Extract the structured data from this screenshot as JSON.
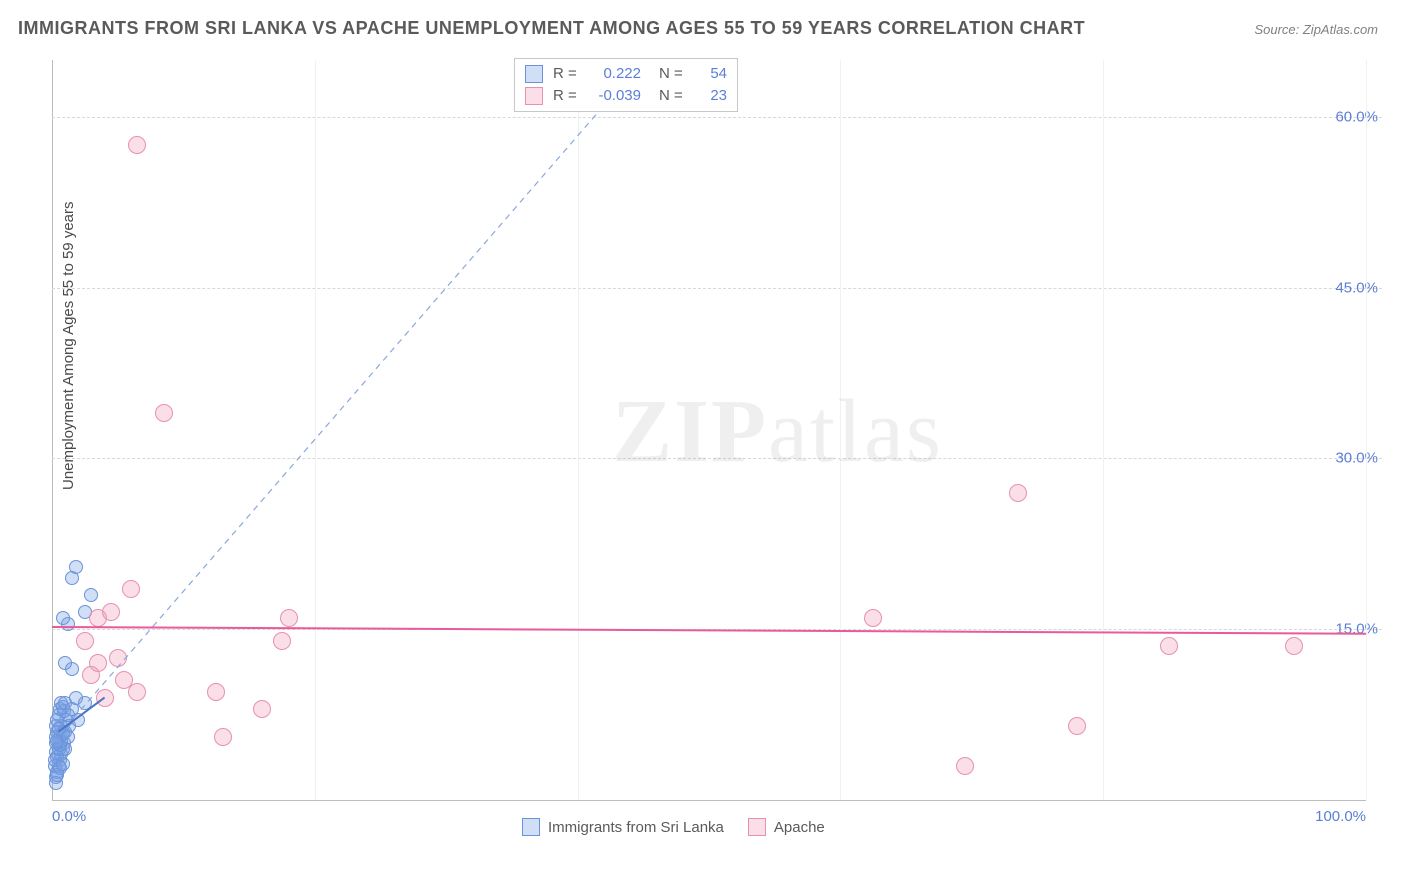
{
  "title": "IMMIGRANTS FROM SRI LANKA VS APACHE UNEMPLOYMENT AMONG AGES 55 TO 59 YEARS CORRELATION CHART",
  "source": "Source: ZipAtlas.com",
  "ylabel": "Unemployment Among Ages 55 to 59 years",
  "watermark_a": "ZIP",
  "watermark_b": "atlas",
  "chart": {
    "type": "scatter",
    "xlim": [
      0,
      100
    ],
    "ylim": [
      0,
      65
    ],
    "xticks": [
      {
        "v": 0,
        "label": "0.0%"
      },
      {
        "v": 100,
        "label": "100.0%"
      }
    ],
    "xgrid": [
      20,
      40,
      60,
      80,
      100
    ],
    "yticks": [
      {
        "v": 15,
        "label": "15.0%"
      },
      {
        "v": 30,
        "label": "30.0%"
      },
      {
        "v": 45,
        "label": "45.0%"
      },
      {
        "v": 60,
        "label": "60.0%"
      }
    ],
    "grid_color": "#d8d8d8",
    "axis_color": "#bdbdbd",
    "background_color": "#ffffff",
    "tick_color": "#5b7fd6",
    "tick_fontsize": 15,
    "title_fontsize": 18,
    "title_color": "#5a5a5a",
    "point_radius_blue": 7,
    "point_radius_pink": 9,
    "series": [
      {
        "key": "sri_lanka",
        "label": "Immigrants from Sri Lanka",
        "fill": "rgba(120,160,230,0.35)",
        "stroke": "#6a93d8",
        "r": 0.222,
        "n": 54,
        "radius": 7,
        "trend": {
          "x1": 0,
          "y1": 5,
          "x2": 45,
          "y2": 65,
          "color": "#8aa8db",
          "dash": "6 5",
          "width": 1.2
        },
        "arrow": {
          "x1": 0.5,
          "y1": 6,
          "x2": 4,
          "y2": 9,
          "color": "#4a74c4",
          "width": 2
        },
        "points": [
          [
            0.3,
            2.0
          ],
          [
            0.4,
            2.5
          ],
          [
            0.5,
            3.0
          ],
          [
            0.6,
            3.5
          ],
          [
            0.7,
            4.0
          ],
          [
            0.8,
            4.5
          ],
          [
            0.5,
            5.0
          ],
          [
            0.6,
            5.5
          ],
          [
            0.4,
            6.0
          ],
          [
            0.7,
            6.5
          ],
          [
            0.8,
            6.0
          ],
          [
            0.9,
            5.0
          ],
          [
            1.0,
            4.5
          ],
          [
            1.1,
            7.0
          ],
          [
            1.2,
            7.5
          ],
          [
            1.3,
            6.5
          ],
          [
            0.5,
            7.5
          ],
          [
            0.6,
            8.0
          ],
          [
            0.7,
            8.5
          ],
          [
            0.8,
            8.2
          ],
          [
            0.9,
            7.8
          ],
          [
            1.0,
            8.5
          ],
          [
            1.5,
            8.0
          ],
          [
            1.8,
            9.0
          ],
          [
            0.3,
            4.2
          ],
          [
            0.4,
            3.8
          ],
          [
            0.5,
            4.5
          ],
          [
            0.6,
            4.8
          ],
          [
            0.7,
            5.2
          ],
          [
            0.8,
            5.8
          ],
          [
            0.3,
            6.5
          ],
          [
            0.4,
            7.0
          ],
          [
            0.2,
            3.0
          ],
          [
            0.2,
            3.5
          ],
          [
            0.3,
            5.0
          ],
          [
            0.3,
            5.5
          ],
          [
            0.4,
            5.2
          ],
          [
            0.5,
            6.2
          ],
          [
            1.0,
            6.0
          ],
          [
            1.2,
            5.5
          ],
          [
            2.5,
            8.5
          ],
          [
            2.0,
            7.0
          ],
          [
            1.5,
            11.5
          ],
          [
            1.0,
            12.0
          ],
          [
            1.2,
            15.5
          ],
          [
            0.8,
            16.0
          ],
          [
            2.5,
            16.5
          ],
          [
            3.0,
            18.0
          ],
          [
            1.5,
            19.5
          ],
          [
            1.8,
            20.5
          ],
          [
            0.3,
            1.5
          ],
          [
            0.4,
            2.2
          ],
          [
            0.6,
            2.8
          ],
          [
            0.8,
            3.2
          ]
        ]
      },
      {
        "key": "apache",
        "label": "Apache",
        "fill": "rgba(240,160,190,0.35)",
        "stroke": "#e890b0",
        "r": -0.039,
        "n": 23,
        "radius": 9,
        "trend": {
          "x1": 0,
          "y1": 15.2,
          "x2": 100,
          "y2": 14.6,
          "color": "#e85a9a",
          "dash": "",
          "width": 2
        },
        "points": [
          [
            6.5,
            57.5
          ],
          [
            8.5,
            34.0
          ],
          [
            3.5,
            16.0
          ],
          [
            4.5,
            16.5
          ],
          [
            6.0,
            18.5
          ],
          [
            3.5,
            12.0
          ],
          [
            5.0,
            12.5
          ],
          [
            5.5,
            10.5
          ],
          [
            4.0,
            9.0
          ],
          [
            6.5,
            9.5
          ],
          [
            12.5,
            9.5
          ],
          [
            13.0,
            5.5
          ],
          [
            16.0,
            8.0
          ],
          [
            18.0,
            16.0
          ],
          [
            62.5,
            16.0
          ],
          [
            78.0,
            6.5
          ],
          [
            73.5,
            27.0
          ],
          [
            69.5,
            3.0
          ],
          [
            85.0,
            13.5
          ],
          [
            94.5,
            13.5
          ],
          [
            2.5,
            14.0
          ],
          [
            3.0,
            11.0
          ],
          [
            17.5,
            14.0
          ]
        ]
      }
    ]
  },
  "r_legend": {
    "r_prefix": "R =",
    "n_prefix": "N =",
    "rows": [
      {
        "swatch_fill": "rgba(120,160,230,0.35)",
        "swatch_stroke": "#6a93d8",
        "r": "0.222",
        "n": "54"
      },
      {
        "swatch_fill": "rgba(240,160,190,0.35)",
        "swatch_stroke": "#e890b0",
        "r": "-0.039",
        "n": "23"
      }
    ]
  },
  "bottom_legend": [
    {
      "swatch_fill": "rgba(120,160,230,0.35)",
      "swatch_stroke": "#6a93d8",
      "label": "Immigrants from Sri Lanka"
    },
    {
      "swatch_fill": "rgba(240,160,190,0.35)",
      "swatch_stroke": "#e890b0",
      "label": "Apache"
    }
  ]
}
